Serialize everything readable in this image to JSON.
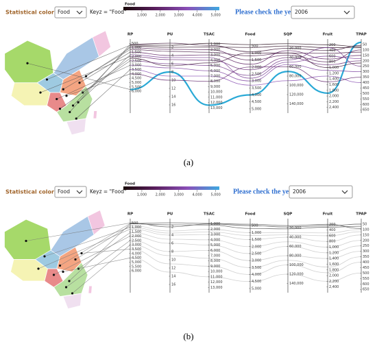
{
  "controls": {
    "coloring_label": "Statistical coloring:",
    "coloring_value": "Food",
    "keyz": "Keyz = \"Food\"",
    "year_label": "Please check the year:",
    "year_value": "2006"
  },
  "legend": {
    "title": "Food",
    "lim": [
      0,
      5200
    ],
    "colors": [
      "#1a0a0a",
      "#5a1f5e",
      "#8a4fb8",
      "#3ea8e0"
    ],
    "ticks": [
      {
        "value": 1000,
        "label": "1,000"
      },
      {
        "value": 2000,
        "label": "2,000"
      },
      {
        "value": 3000,
        "label": "3,000"
      },
      {
        "value": 4000,
        "label": "4,000"
      },
      {
        "value": 5000,
        "label": "5,000"
      }
    ]
  },
  "axes": [
    {
      "name": "RP",
      "lim": [
        0,
        8500
      ],
      "ticks": [
        500,
        {
          "value": 1000,
          "label": "1,000"
        },
        {
          "value": 1500,
          "label": "1,500"
        },
        {
          "value": 2000,
          "label": "2,000"
        },
        {
          "value": 2500,
          "label": "2,500"
        },
        {
          "value": 3000,
          "label": "3,000"
        },
        {
          "value": 3500,
          "label": "3,500"
        },
        {
          "value": 4000,
          "label": "4,000"
        },
        {
          "value": 4500,
          "label": "4,500"
        },
        {
          "value": 5000,
          "label": "5,000"
        },
        {
          "value": 5500,
          "label": "5,500"
        },
        {
          "value": 6000,
          "label": "6,000"
        }
      ]
    },
    {
      "name": "PU",
      "lim": [
        0,
        18
      ],
      "ticks": [
        2,
        4,
        6,
        8,
        10,
        12,
        14,
        16
      ]
    },
    {
      "name": "TSAC",
      "lim": [
        0,
        14000
      ],
      "ticks": [
        {
          "value": 1000,
          "label": "1,000"
        },
        {
          "value": 2000,
          "label": "2,000"
        },
        {
          "value": 3000,
          "label": "3,000"
        },
        {
          "value": 4000,
          "label": "4,000"
        },
        {
          "value": 5000,
          "label": "5,000"
        },
        {
          "value": 6000,
          "label": "6,000"
        },
        {
          "value": 7000,
          "label": "7,000"
        },
        {
          "value": 8000,
          "label": "8,000"
        },
        {
          "value": 9000,
          "label": "9,000"
        },
        {
          "value": 10000,
          "label": "10,000"
        },
        {
          "value": 11000,
          "label": "11,000"
        },
        {
          "value": 12000,
          "label": "12,000"
        },
        {
          "value": 13000,
          "label": "13,000"
        }
      ]
    },
    {
      "name": "Food",
      "lim": [
        0,
        5300
      ],
      "ticks": [
        500,
        {
          "value": 1000,
          "label": "1,000"
        },
        {
          "value": 1500,
          "label": "1,500"
        },
        {
          "value": 2000,
          "label": "2,000"
        },
        {
          "value": 2500,
          "label": "2,500"
        },
        {
          "value": 3000,
          "label": "3,000"
        },
        {
          "value": 3500,
          "label": "3,500"
        },
        {
          "value": 4000,
          "label": "4,000"
        },
        {
          "value": 4500,
          "label": "4,500"
        },
        {
          "value": 5000,
          "label": "5,000"
        }
      ]
    },
    {
      "name": "SQP",
      "lim": [
        0,
        160000
      ],
      "ticks": [
        {
          "value": 20000,
          "label": "20,000"
        },
        {
          "value": 40000,
          "label": "40,000"
        },
        {
          "value": 60000,
          "label": "60,000"
        },
        {
          "value": 80000,
          "label": "80,000"
        },
        {
          "value": 100000,
          "label": "100,000"
        },
        {
          "value": 120000,
          "label": "120,000"
        },
        {
          "value": 140000,
          "label": "140,000"
        }
      ]
    },
    {
      "name": "Fruit",
      "lim": [
        0,
        2600
      ],
      "ticks": [
        200,
        400,
        600,
        800,
        {
          "value": 1000,
          "label": "1,000"
        },
        {
          "value": 1200,
          "label": "1,200"
        },
        {
          "value": 1400,
          "label": "1,400"
        },
        {
          "value": 1600,
          "label": "1,600"
        },
        {
          "value": 1800,
          "label": "1,800"
        },
        {
          "value": 2000,
          "label": "2,000"
        },
        {
          "value": 2200,
          "label": "2,200"
        },
        {
          "value": 2400,
          "label": "2,400"
        }
      ]
    },
    {
      "name": "TPAP",
      "lim": [
        0,
        680
      ],
      "ticks": [
        50,
        100,
        150,
        200,
        250,
        300,
        350,
        400,
        450,
        500,
        550,
        600,
        650
      ]
    }
  ],
  "panels": [
    {
      "caption": "(a)",
      "lines": [
        {
          "values": [
            5800,
            8,
            12500,
            4000,
            70000,
            1900,
            30
          ],
          "color": "#29a9d6",
          "highlight": true
        },
        {
          "values": [
            800,
            2,
            1500,
            600,
            15000,
            300,
            80
          ]
        },
        {
          "values": [
            1200,
            3,
            2500,
            1200,
            30000,
            500,
            120
          ]
        },
        {
          "values": [
            1500,
            4,
            3000,
            1800,
            25000,
            700,
            150
          ]
        },
        {
          "values": [
            2000,
            5,
            4000,
            2200,
            40000,
            900,
            200
          ]
        },
        {
          "values": [
            2500,
            6,
            5000,
            2600,
            45000,
            300,
            250
          ]
        },
        {
          "values": [
            3000,
            7,
            6000,
            3000,
            55000,
            1100,
            300
          ]
        },
        {
          "values": [
            600,
            1,
            1200,
            900,
            20000,
            400,
            60
          ]
        },
        {
          "values": [
            3500,
            9,
            7000,
            3300,
            90000,
            1300,
            400
          ]
        },
        {
          "values": [
            1000,
            2.5,
            2000,
            1500,
            35000,
            800,
            100
          ]
        },
        {
          "values": [
            4000,
            10,
            8000,
            2000,
            60000,
            1500,
            350
          ]
        },
        {
          "values": [
            700,
            1.5,
            800,
            400,
            10000,
            200,
            70
          ]
        },
        {
          "values": [
            1800,
            4.5,
            3500,
            2800,
            50000,
            600,
            180
          ]
        },
        {
          "values": [
            2200,
            6.5,
            4500,
            1000,
            30000,
            1000,
            220
          ]
        }
      ]
    },
    {
      "caption": "(b)",
      "lines": [
        {
          "values": [
            500,
            2,
            1000,
            500,
            18000,
            250,
            50
          ],
          "color": "#555555"
        },
        {
          "values": [
            600,
            1.5,
            1200,
            700,
            22000,
            300,
            70
          ],
          "color": "#555555"
        },
        {
          "values": [
            550,
            1,
            900,
            400,
            15000,
            200,
            90
          ],
          "color": "#555555"
        },
        {
          "values": [
            800,
            3,
            2000,
            1000,
            30000,
            500,
            100
          ],
          "color": "#c8c8c8"
        },
        {
          "values": [
            1200,
            4,
            3000,
            1500,
            40000,
            800,
            150
          ],
          "color": "#c8c8c8"
        },
        {
          "values": [
            1600,
            5,
            4000,
            2000,
            50000,
            1000,
            200
          ],
          "color": "#c8c8c8"
        },
        {
          "values": [
            2000,
            6,
            5000,
            2500,
            60000,
            1200,
            250
          ],
          "color": "#c8c8c8"
        },
        {
          "values": [
            2500,
            8,
            6000,
            3000,
            80000,
            1400,
            300
          ],
          "color": "#c8c8c8"
        },
        {
          "values": [
            3000,
            9,
            7500,
            3500,
            90000,
            1700,
            350
          ],
          "color": "#c8c8c8"
        },
        {
          "values": [
            3500,
            11,
            9000,
            4000,
            100000,
            1900,
            400
          ],
          "color": "#c8c8c8"
        },
        {
          "values": [
            4500,
            13,
            11000,
            4500,
            120000,
            2200,
            500
          ],
          "color": "#c8c8c8"
        },
        {
          "values": [
            1000,
            3.5,
            2500,
            1200,
            35000,
            600,
            120
          ],
          "color": "#c8c8c8"
        }
      ]
    }
  ]
}
